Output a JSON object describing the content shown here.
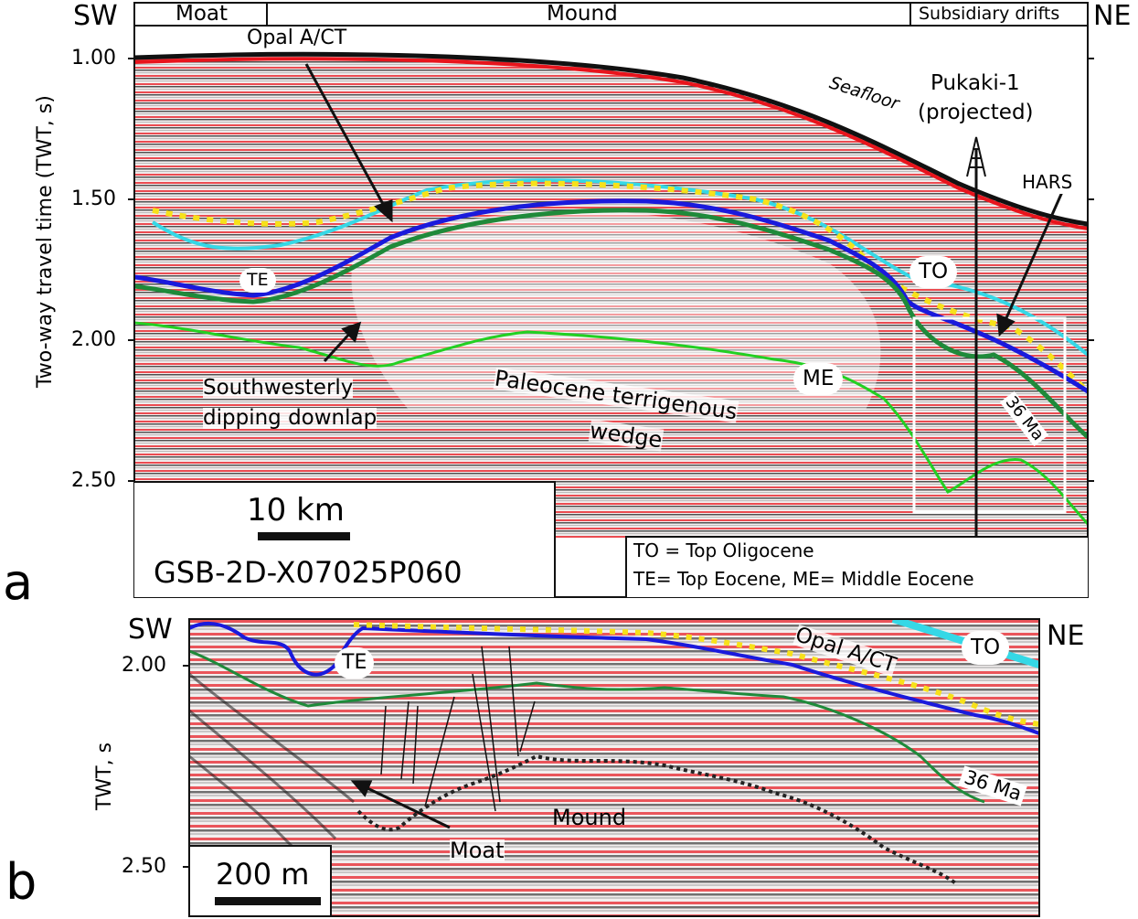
{
  "panel_a": {
    "letter": "a",
    "dir_left": "SW",
    "dir_right": "NE",
    "header_cells": [
      "Moat",
      "Mound",
      "Subsidiary drifts"
    ],
    "yaxis_label": "Two-way travel time (TWT, s)",
    "yticks": [
      "1.00",
      "1.50",
      "2.00",
      "2.50"
    ],
    "annotations": {
      "opal": "Opal A/CT",
      "seafloor": "Seafloor",
      "well_line1": "Pukaki-1",
      "well_line2": "(projected)",
      "hars": "HARS",
      "te": "TE",
      "to": "TO",
      "me": "ME",
      "downlap_line1": "Southwesterly",
      "downlap_line2": "dipping downlap",
      "wedge_line1": "Paleocene terrigenous",
      "wedge_line2": "wedge",
      "ma36": "36 Ma"
    },
    "scale_label": "10 km",
    "line_id": "GSB-2D-X07025P060",
    "legend": [
      "TO = Top Oligocene",
      "TE= Top Eocene, ME= Middle Eocene"
    ]
  },
  "panel_b": {
    "letter": "b",
    "dir_left": "SW",
    "dir_right": "NE",
    "yaxis_label": "TWT, s",
    "yticks": [
      "2.00",
      "2.50"
    ],
    "annotations": {
      "te": "TE",
      "opal": "Opal A/CT",
      "to": "TO",
      "ma36": "36 Ma",
      "mound": "Mound",
      "moat": "Moat"
    },
    "scale_label": "200 m"
  },
  "colors": {
    "seismic_red": "#e8141c",
    "top_eocene": "#1a1adc",
    "top_oligocene": "#35d8e6",
    "horizon_36ma": "#1f8a3a",
    "middle_eocene": "#22d022",
    "opal_dots": "#f7e11a"
  }
}
